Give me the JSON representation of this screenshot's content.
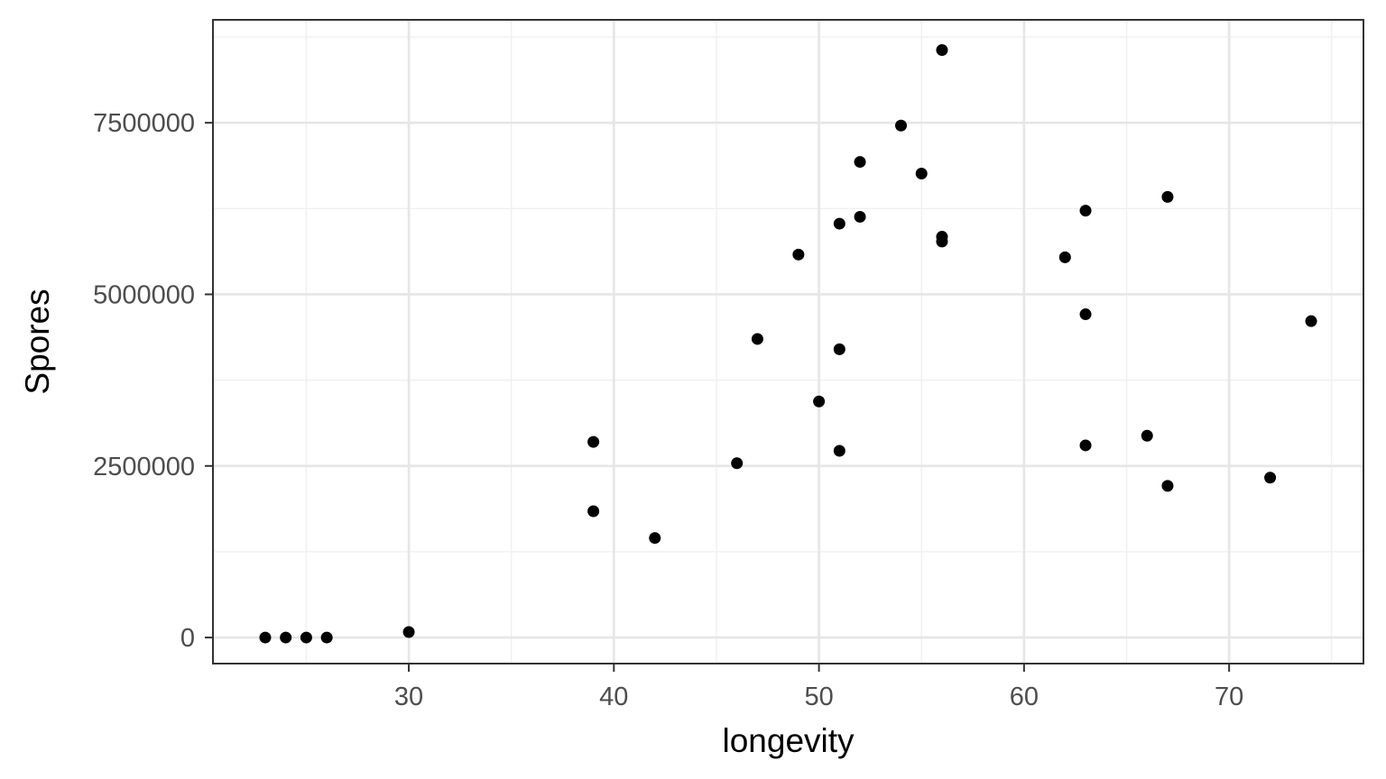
{
  "chart_data": {
    "type": "scatter",
    "title": "",
    "xlabel": "longevity",
    "ylabel": "Spores",
    "xlim": [
      20.45,
      76.55
    ],
    "ylim": [
      -380000,
      9000000
    ],
    "x_major_ticks": [
      30,
      40,
      50,
      60,
      70
    ],
    "x_minor_ticks": [
      25,
      35,
      45,
      55,
      65,
      75
    ],
    "y_major_ticks": [
      0,
      2500000,
      5000000,
      7500000
    ],
    "y_minor_ticks": [
      1250000,
      3750000,
      6250000,
      8750000
    ],
    "x_tick_labels": [
      "30",
      "40",
      "50",
      "60",
      "70"
    ],
    "y_tick_labels": [
      "0",
      "2500000",
      "5000000",
      "7500000"
    ],
    "grid": true,
    "legend": "none",
    "point_color": "#000000",
    "series": [
      {
        "points": [
          {
            "x": 23,
            "y": 0
          },
          {
            "x": 24,
            "y": 0
          },
          {
            "x": 25,
            "y": 0
          },
          {
            "x": 26,
            "y": 0
          },
          {
            "x": 30,
            "y": 80000
          },
          {
            "x": 39,
            "y": 2850000
          },
          {
            "x": 39,
            "y": 1840000
          },
          {
            "x": 42,
            "y": 1450000
          },
          {
            "x": 46,
            "y": 2540000
          },
          {
            "x": 47,
            "y": 4350000
          },
          {
            "x": 49,
            "y": 5580000
          },
          {
            "x": 50,
            "y": 3440000
          },
          {
            "x": 51,
            "y": 6030000
          },
          {
            "x": 51,
            "y": 4200000
          },
          {
            "x": 51,
            "y": 2720000
          },
          {
            "x": 52,
            "y": 6930000
          },
          {
            "x": 52,
            "y": 6130000
          },
          {
            "x": 54,
            "y": 7460000
          },
          {
            "x": 55,
            "y": 6760000
          },
          {
            "x": 56,
            "y": 8560000
          },
          {
            "x": 56,
            "y": 5840000
          },
          {
            "x": 56,
            "y": 5770000
          },
          {
            "x": 62,
            "y": 5540000
          },
          {
            "x": 63,
            "y": 6220000
          },
          {
            "x": 63,
            "y": 4710000
          },
          {
            "x": 63,
            "y": 2800000
          },
          {
            "x": 66,
            "y": 2940000
          },
          {
            "x": 67,
            "y": 6420000
          },
          {
            "x": 67,
            "y": 2210000
          },
          {
            "x": 72,
            "y": 2330000
          },
          {
            "x": 74,
            "y": 4610000
          }
        ]
      }
    ]
  }
}
